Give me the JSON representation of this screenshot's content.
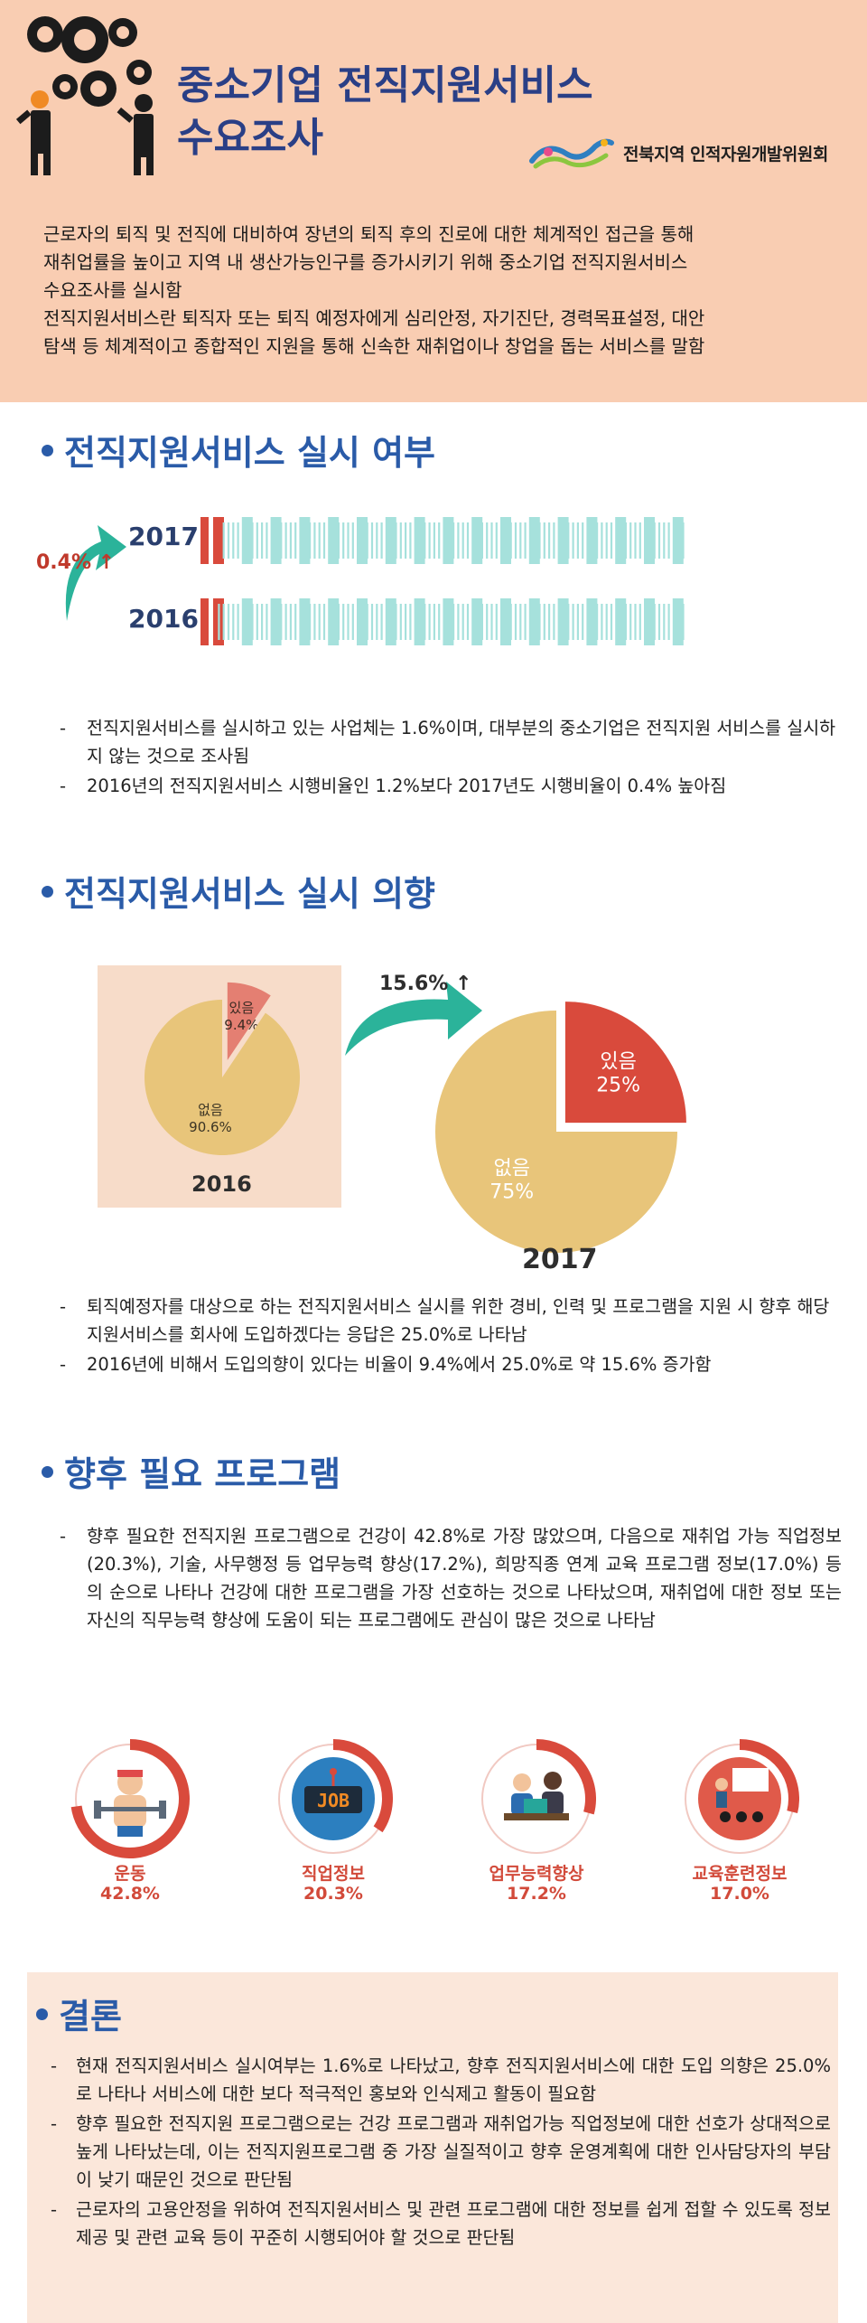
{
  "header": {
    "title_line1": "중소기업 전직지원서비스",
    "title_line2": "수요조사",
    "org_name": "전북지역 인적자원개발위원회",
    "intro_lines": [
      "근로자의 퇴직 및 전직에 대비하여 장년의 퇴직 후의 진로에 대한 체계적인 접근을 통해",
      "재취업률을 높이고 지역 내 생산가능인구를 증가시키기 위해 중소기업 전직지원서비스",
      "수요조사를 실시함",
      "전직지원서비스란 퇴직자 또는 퇴직 예정자에게 심리안정, 자기진단, 경력목표설정, 대안",
      "탐색 등 체계적이고 종합적인 지원을 통해 신속한 재취업이나 창업을 돕는 서비스를 말함"
    ]
  },
  "section1": {
    "title": "전직지원서비스 실시 여부",
    "rate_change": "0.4% ↑",
    "bullets": [
      "전직지원서비스를 실시하고 있는 사업체는 1.6%이며, 대부분의 중소기업은 전직지원 서비스를 실시하지 않는 것으로 조사됨",
      "2016년의 전직지원서비스 시행비율인 1.2%보다 2017년도 시행비율이 0.4% 높아짐"
    ]
  },
  "section2": {
    "title": "전직지원서비스 실시 의향",
    "rate_change": "15.6% ↑",
    "bullets": [
      "퇴직예정자를 대상으로 하는 전직지원서비스 실시를 위한 경비, 인력 및 프로그램을 지원 시 향후 해당 지원서비스를 회사에 도입하겠다는 응답은 25.0%로 나타남",
      "2016년에 비해서 도입의향이 있다는 비율이 9.4%에서 25.0%로 약 15.6% 증가함"
    ]
  },
  "section3": {
    "title": "향후 필요 프로그램",
    "bullet": "향후 필요한 전직지원 프로그램으로 건강이 42.8%로 가장 많았으며, 다음으로 재취업 가능 직업정보(20.3%), 기술, 사무행정 등 업무능력 향상(17.2%), 희망직종 연계 교육 프로그램 정보(17.0%) 등의 순으로 나타나 건강에 대한 프로그램을 가장 선호하는 것으로 나타났으며, 재취업에 대한 정보 또는 자신의 직무능력 향상에 도움이 되는 프로그램에도 관심이 많은 것으로 나타남",
    "job_sign": "JOB"
  },
  "conclusion": {
    "title": "결론",
    "bullets": [
      "현재 전직지원서비스 실시여부는 1.6%로 나타났고, 향후 전직지원서비스에 대한 도입 의향은 25.0%로 나타나 서비스에 대한 보다 적극적인 홍보와 인식제고 활동이 필요함",
      "향후 필요한 전직지원 프로그램으로는 건강 프로그램과 재취업가능 직업정보에 대한 선호가 상대적으로 높게 나타났는데, 이는 전직지원프로그램 중 가장 실질적이고 향후 운영계획에 대한 인사담당자의 부담이 낮기 때문인 것으로 판단됨",
      "근로자의 고용안정을 위하여 전직지원서비스 및 관련 프로그램에 대한 정보를 쉽게 접할 수 있도록 정보 제공 및 관련 교육 등이 꾸준히 시행되어야 할 것으로 판단됨"
    ]
  },
  "colors": {
    "accent_blue": "#2a5ba8",
    "title_navy": "#2a3f86",
    "red": "#d94a3c",
    "teal": "#2bb39a",
    "bar_teal": "#a6e1dc",
    "pie_yes": "#d94a3c",
    "pie_no": "#e8c57a",
    "pie_yes_2016": "#e47f72",
    "header_bg": "#f9cdb2"
  },
  "chart_data": [
    {
      "type": "bar",
      "categories": [
        "2017",
        "2016"
      ],
      "values": [
        1.6,
        1.2
      ],
      "unit": "%",
      "title": "",
      "xlabel": "",
      "ylabel": ""
    },
    {
      "type": "pie",
      "title": "2016",
      "labels": [
        "있음",
        "없음"
      ],
      "values": [
        9.4,
        90.6
      ],
      "value_labels": [
        "9.4%",
        "90.6%"
      ]
    },
    {
      "type": "pie",
      "title": "2017",
      "labels": [
        "있음",
        "없음"
      ],
      "values": [
        25,
        75
      ],
      "value_labels": [
        "25%",
        "75%"
      ]
    },
    {
      "type": "bar",
      "categories": [
        "운동",
        "직업정보",
        "업무능력향상",
        "교육훈련정보"
      ],
      "values": [
        42.8,
        20.3,
        17.2,
        17.0
      ],
      "value_labels": [
        "42.8%",
        "20.3%",
        "17.2%",
        "17.0%"
      ],
      "unit": "%",
      "title": ""
    }
  ]
}
